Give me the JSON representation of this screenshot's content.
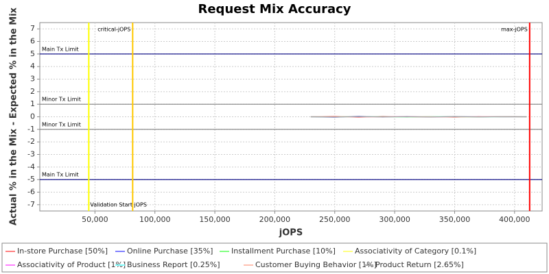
{
  "chart_data": {
    "type": "line",
    "title": "Request Mix Accuracy",
    "xlabel": "jOPS",
    "ylabel": "Actual % in the Mix - Expected % in the Mix",
    "x": [
      230000,
      250000,
      270000,
      290000,
      310000,
      330000,
      350000,
      370000,
      390000,
      410000
    ],
    "series": [
      {
        "name": "In-store Purchase [50%]",
        "color": "#ff8080",
        "values": [
          0.0,
          0.05,
          -0.05,
          0.04,
          -0.03,
          0.02,
          -0.04,
          0.03,
          -0.02,
          0.0
        ]
      },
      {
        "name": "Online Purchase [35%]",
        "color": "#8080ff",
        "values": [
          0.0,
          -0.04,
          0.05,
          -0.03,
          0.03,
          -0.02,
          0.03,
          -0.02,
          0.02,
          0.0
        ]
      },
      {
        "name": "Installment Purchase [10%]",
        "color": "#80ff80",
        "values": [
          0.0,
          0.02,
          -0.01,
          0.01,
          -0.02,
          0.01,
          0.0,
          -0.01,
          0.01,
          0.0
        ]
      },
      {
        "name": "Associativity of Category [0.1%]",
        "color": "#ffff80",
        "values": [
          0.0,
          0.0,
          0.0,
          0.0,
          0.0,
          0.0,
          0.0,
          0.0,
          0.0,
          0.0
        ]
      },
      {
        "name": "Associativity of Product [1%]",
        "color": "#ff80ff",
        "values": [
          0.0,
          0.01,
          -0.01,
          0.0,
          0.01,
          -0.01,
          0.0,
          0.01,
          0.0,
          0.0
        ]
      },
      {
        "name": "Business Report [0.25%]",
        "color": "#80ffff",
        "values": [
          0.0,
          -0.01,
          0.01,
          0.0,
          -0.01,
          0.01,
          0.0,
          0.0,
          -0.01,
          0.0
        ]
      },
      {
        "name": "Customer Buying Behavior [1%]",
        "color": "#ffc0b0",
        "values": [
          0.0,
          0.01,
          0.0,
          -0.01,
          0.01,
          0.0,
          -0.01,
          0.0,
          0.01,
          0.0
        ]
      },
      {
        "name": "Product Return [2.65%]",
        "color": "#a0a0a0",
        "values": [
          0.0,
          -0.02,
          0.02,
          -0.01,
          0.01,
          -0.02,
          0.02,
          -0.01,
          0.01,
          0.0
        ]
      }
    ],
    "xlim": [
      4000,
      423000
    ],
    "ylim": [
      -7.5,
      7.5
    ],
    "xticks": [
      {
        "value": 50000,
        "label": "50,000"
      },
      {
        "value": 100000,
        "label": "100,000"
      },
      {
        "value": 150000,
        "label": "150,000"
      },
      {
        "value": 200000,
        "label": "200,000"
      },
      {
        "value": 250000,
        "label": "250,000"
      },
      {
        "value": 300000,
        "label": "300,000"
      },
      {
        "value": 350000,
        "label": "350,000"
      },
      {
        "value": 400000,
        "label": "400,000"
      }
    ],
    "yticks": [
      -7,
      -6,
      -5,
      -4,
      -3,
      -2,
      -1,
      0,
      1,
      2,
      3,
      4,
      5,
      6,
      7
    ],
    "grid": true,
    "markers": [
      {
        "label": "Validation Start jOPS",
        "value": 44850,
        "color": "#ffff00"
      },
      {
        "label": "critical-jOPS",
        "value": 81460,
        "color": "#ffc800"
      },
      {
        "label": "max-jOPS",
        "value": 412590,
        "color": "#ff0000"
      }
    ],
    "limits": [
      {
        "label": "Main Tx Limit",
        "value": 5,
        "color": "#000080"
      },
      {
        "label": "Minor Tx Limit",
        "value": 1,
        "color": "#808080"
      },
      {
        "label": "Minor Tx Limit",
        "value": -1,
        "color": "#808080"
      },
      {
        "label": "Main Tx Limit",
        "value": -5,
        "color": "#000080"
      }
    ]
  }
}
